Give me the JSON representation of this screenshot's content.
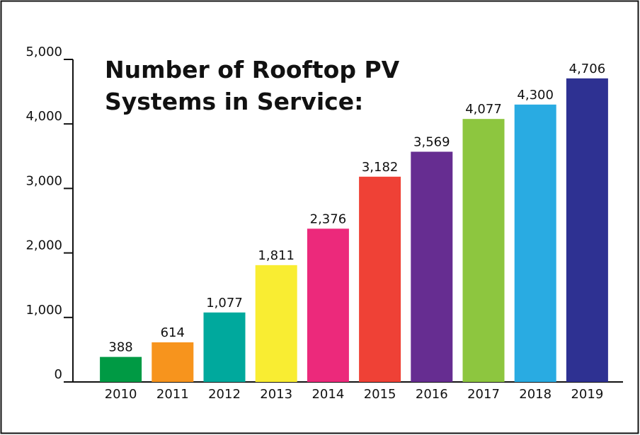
{
  "chart_data": {
    "type": "bar",
    "title": [
      "Number of Rooftop PV",
      "Systems in Service:"
    ],
    "categories": [
      "2010",
      "2011",
      "2012",
      "2013",
      "2014",
      "2015",
      "2016",
      "2017",
      "2018",
      "2019"
    ],
    "values": [
      388,
      614,
      1077,
      1811,
      2376,
      3182,
      3569,
      4077,
      4300,
      4706
    ],
    "value_labels": [
      "388",
      "614",
      "1,077",
      "1,811",
      "2,376",
      "3,182",
      "3,569",
      "4,077",
      "4,300",
      "4,706"
    ],
    "colors": [
      "#009a44",
      "#f7941d",
      "#00a99d",
      "#f9ed32",
      "#ec297b",
      "#ef4136",
      "#662d91",
      "#8dc63f",
      "#29abe2",
      "#2e3192"
    ],
    "ylim": [
      0,
      5000
    ],
    "yticks": [
      0,
      {
        "value": 1000,
        "label": "1,000"
      },
      {
        "value": 2000,
        "label": "2,000"
      },
      {
        "value": 3000,
        "label": "3,000"
      },
      {
        "value": 4000,
        "label": "4,000"
      },
      {
        "value": 5000,
        "label": "5,000"
      }
    ],
    "grid": false
  }
}
